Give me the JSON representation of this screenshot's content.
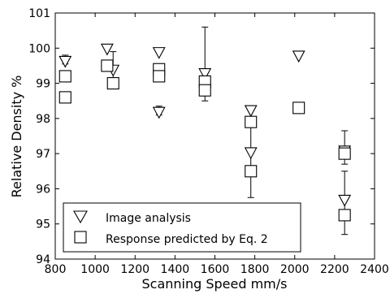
{
  "chart_data": {
    "type": "scatter",
    "title": "",
    "xlabel": "Scanning Speed mm/s",
    "ylabel": "Relative Density %",
    "xlim": [
      800,
      2400
    ],
    "ylim": [
      94,
      101
    ],
    "xticks": [
      800,
      1000,
      1200,
      1400,
      1600,
      1800,
      2000,
      2200,
      2400
    ],
    "yticks": [
      94,
      95,
      96,
      97,
      98,
      99,
      100,
      101
    ],
    "grid": false,
    "legend_position": "bottom-left",
    "series": [
      {
        "name": "Image analysis",
        "marker": "triangle-down",
        "points": [
          {
            "x": 850,
            "y": 99.65,
            "err_low": 99.55,
            "err_high": 99.8
          },
          {
            "x": 1060,
            "y": 100.0
          },
          {
            "x": 1090,
            "y": 99.4,
            "err_low": 99.0,
            "err_high": 99.9
          },
          {
            "x": 1320,
            "y": 99.9
          },
          {
            "x": 1320,
            "y": 98.2,
            "err_low": 98.1,
            "err_high": 98.35
          },
          {
            "x": 1550,
            "y": 99.3,
            "err_low": 98.5,
            "err_high": 100.6
          },
          {
            "x": 1780,
            "y": 98.25,
            "err_low": 98.0,
            "err_high": 98.35
          },
          {
            "x": 1780,
            "y": 97.05,
            "err_low": 95.75,
            "err_high": 98.3
          },
          {
            "x": 2020,
            "y": 99.8
          },
          {
            "x": 2250,
            "y": 97.1,
            "err_low": 96.7,
            "err_high": 97.65
          },
          {
            "x": 2250,
            "y": 95.7,
            "err_low": 94.7,
            "err_high": 96.5
          }
        ]
      },
      {
        "name": "Response predicted by Eq. 2",
        "marker": "square",
        "points": [
          {
            "x": 850,
            "y": 99.2
          },
          {
            "x": 850,
            "y": 98.6
          },
          {
            "x": 1060,
            "y": 99.5
          },
          {
            "x": 1090,
            "y": 99.0
          },
          {
            "x": 1320,
            "y": 99.4
          },
          {
            "x": 1320,
            "y": 99.2
          },
          {
            "x": 1550,
            "y": 99.05
          },
          {
            "x": 1550,
            "y": 98.8
          },
          {
            "x": 1780,
            "y": 97.9
          },
          {
            "x": 1780,
            "y": 96.5
          },
          {
            "x": 2020,
            "y": 98.3
          },
          {
            "x": 2250,
            "y": 97.0
          },
          {
            "x": 2250,
            "y": 95.25
          }
        ]
      }
    ]
  }
}
